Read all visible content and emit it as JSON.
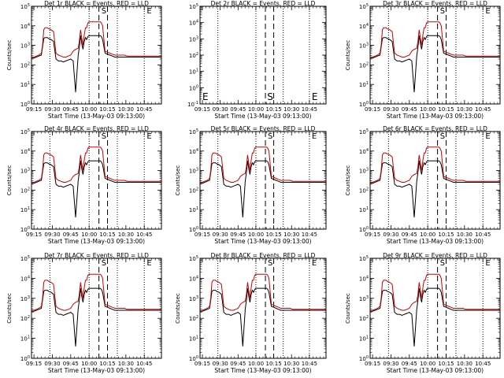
{
  "chart_data": [
    {
      "type": "line",
      "title": "Det 1r  BLACK = Events, RED = LLD",
      "xlabel": "Start Time (13-May-03 09:13:00)",
      "ylabel": "Counts/sec",
      "x_tick_labels": [
        "09:15",
        "09:30",
        "09:45",
        "10:00",
        "10:15",
        "10:30",
        "10:45"
      ],
      "y_tick_labels": [
        "10^0",
        "10^1",
        "10^2",
        "10^3",
        "10^4",
        "10^5"
      ],
      "y_scale": "log",
      "ylim": [
        1,
        100000
      ],
      "marker_labels": [
        "S",
        "E"
      ],
      "series": [
        {
          "name": "BLACK = Events",
          "color": "#000000",
          "level": "events"
        },
        {
          "name": "RED = LLD",
          "color": "#cc0000",
          "level": "lld"
        }
      ],
      "has_data": true
    },
    {
      "type": "line",
      "title": "Det 2r  BLACK = Events, RED = LLD",
      "xlabel": "Start Time (13-May-03 09:13:00)",
      "ylabel": "",
      "x_tick_labels": [
        "09:15",
        "09:30",
        "09:45",
        "10:00",
        "10:15",
        "10:30",
        "10:45"
      ],
      "y_tick_labels": [
        "10^-1",
        "10^0",
        "10^1",
        "10^2",
        "10^3",
        "10^4",
        "10^5"
      ],
      "y_scale": "log",
      "ylim": [
        0.1,
        100000
      ],
      "marker_labels": [
        "E",
        "S",
        "E"
      ],
      "series": [],
      "has_data": false
    },
    {
      "type": "line",
      "title": "Det 3r  BLACK = Events, RED = LLD",
      "xlabel": "Start Time (13-May-03 09:13:00)",
      "ylabel": "Counts/sec",
      "x_tick_labels": [
        "09:15",
        "09:30",
        "09:45",
        "10:00",
        "10:15",
        "10:30",
        "10:45"
      ],
      "y_tick_labels": [
        "10^0",
        "10^1",
        "10^2",
        "10^3",
        "10^4",
        "10^5"
      ],
      "y_scale": "log",
      "ylim": [
        1,
        100000
      ],
      "marker_labels": [
        "S",
        "E"
      ],
      "series": [
        {
          "name": "BLACK = Events",
          "color": "#000000"
        },
        {
          "name": "RED = LLD",
          "color": "#cc0000"
        }
      ],
      "has_data": true
    },
    {
      "type": "line",
      "title": "Det 4r  BLACK = Events, RED = LLD",
      "xlabel": "Start Time (13-May-03 09:13:00)",
      "ylabel": "Counts/sec",
      "x_tick_labels": [
        "09:15",
        "09:30",
        "09:45",
        "10:00",
        "10:15",
        "10:30",
        "10:45"
      ],
      "y_tick_labels": [
        "10^0",
        "10^1",
        "10^2",
        "10^3",
        "10^4",
        "10^5"
      ],
      "y_scale": "log",
      "ylim": [
        1,
        100000
      ],
      "marker_labels": [
        "S",
        "E"
      ],
      "series": [
        {
          "name": "BLACK = Events",
          "color": "#000000"
        },
        {
          "name": "RED = LLD",
          "color": "#cc0000"
        }
      ],
      "has_data": true
    },
    {
      "type": "line",
      "title": "Det 5r  BLACK = Events, RED = LLD",
      "xlabel": "Start Time (13-May-03 09:13:00)",
      "ylabel": "Counts/sec",
      "x_tick_labels": [
        "09:15",
        "09:30",
        "09:45",
        "10:00",
        "10:15",
        "10:30",
        "10:45"
      ],
      "y_tick_labels": [
        "10^0",
        "10^1",
        "10^2",
        "10^3",
        "10^4",
        "10^5"
      ],
      "y_scale": "log",
      "ylim": [
        1,
        100000
      ],
      "marker_labels": [
        "S",
        "E"
      ],
      "series": [
        {
          "name": "BLACK = Events",
          "color": "#000000"
        },
        {
          "name": "RED = LLD",
          "color": "#cc0000"
        }
      ],
      "has_data": true
    },
    {
      "type": "line",
      "title": "Det 6r  BLACK = Events, RED = LLD",
      "xlabel": "Start Time (13-May-03 09:13:00)",
      "ylabel": "Counts/sec",
      "x_tick_labels": [
        "09:15",
        "09:30",
        "09:45",
        "10:00",
        "10:15",
        "10:30",
        "10:45"
      ],
      "y_tick_labels": [
        "10^0",
        "10^1",
        "10^2",
        "10^3",
        "10^4",
        "10^5"
      ],
      "y_scale": "log",
      "ylim": [
        1,
        100000
      ],
      "marker_labels": [
        "S",
        "E"
      ],
      "series": [
        {
          "name": "BLACK = Events",
          "color": "#000000"
        },
        {
          "name": "RED = LLD",
          "color": "#cc0000"
        }
      ],
      "has_data": true
    },
    {
      "type": "line",
      "title": "Det 7r  BLACK = Events, RED = LLD",
      "xlabel": "Start Time (13-May-03 09:13:00)",
      "ylabel": "Counts/sec",
      "x_tick_labels": [
        "09:15",
        "09:30",
        "09:45",
        "10:00",
        "10:15",
        "10:30",
        "10:45"
      ],
      "y_tick_labels": [
        "10^0",
        "10^1",
        "10^2",
        "10^3",
        "10^4",
        "10^5"
      ],
      "y_scale": "log",
      "ylim": [
        1,
        100000
      ],
      "marker_labels": [
        "S",
        "E"
      ],
      "series": [
        {
          "name": "BLACK = Events",
          "color": "#000000"
        },
        {
          "name": "RED = LLD",
          "color": "#cc0000"
        }
      ],
      "has_data": true
    },
    {
      "type": "line",
      "title": "Det 8r  BLACK = Events, RED = LLD",
      "xlabel": "Start Time (13-May-03 09:13:00)",
      "ylabel": "Counts/sec",
      "x_tick_labels": [
        "09:15",
        "09:30",
        "09:45",
        "10:00",
        "10:15",
        "10:30",
        "10:45"
      ],
      "y_tick_labels": [
        "10^0",
        "10^1",
        "10^2",
        "10^3",
        "10^4",
        "10^5"
      ],
      "y_scale": "log",
      "ylim": [
        1,
        100000
      ],
      "marker_labels": [
        "S",
        "E"
      ],
      "series": [
        {
          "name": "BLACK = Events",
          "color": "#000000"
        },
        {
          "name": "RED = LLD",
          "color": "#cc0000"
        }
      ],
      "has_data": true
    },
    {
      "type": "line",
      "title": "Det 9r  BLACK = Events, RED = LLD",
      "xlabel": "Start Time (13-May-03 09:13:00)",
      "ylabel": "Counts/sec",
      "x_tick_labels": [
        "09:15",
        "09:30",
        "09:45",
        "10:00",
        "10:15",
        "10:30",
        "10:45"
      ],
      "y_tick_labels": [
        "10^0",
        "10^1",
        "10^2",
        "10^3",
        "10^4",
        "10^5"
      ],
      "y_scale": "log",
      "ylim": [
        1,
        100000
      ],
      "marker_labels": [
        "S",
        "E"
      ],
      "series": [
        {
          "name": "BLACK = Events",
          "color": "#000000"
        },
        {
          "name": "RED = LLD",
          "color": "#cc0000"
        }
      ],
      "has_data": true
    }
  ],
  "time_series": {
    "minutes_after_0915": [
      0,
      2,
      4,
      6,
      8,
      9,
      10,
      11,
      12,
      13,
      14,
      16,
      18,
      20,
      22,
      24,
      26,
      28,
      30,
      32,
      34,
      36,
      38,
      39,
      40,
      41,
      42,
      43,
      44,
      45,
      46,
      47,
      48,
      49,
      50,
      51,
      52,
      53,
      54,
      55,
      56,
      57,
      58,
      60,
      62,
      64,
      66,
      68,
      70,
      72,
      74,
      76,
      78,
      80,
      82,
      84,
      86,
      88,
      90,
      92,
      94,
      96,
      98,
      100,
      102,
      104,
      106
    ],
    "lld_log10": [
      2.4,
      2.4,
      2.45,
      2.5,
      2.6,
      3.0,
      3.8,
      3.9,
      3.9,
      3.9,
      3.85,
      3.8,
      3.7,
      2.6,
      2.5,
      2.45,
      2.4,
      2.4,
      2.45,
      2.5,
      2.7,
      2.8,
      2.85,
      3.2,
      3.8,
      3.4,
      3.0,
      3.5,
      3.9,
      3.9,
      4.15,
      4.2,
      4.2,
      4.2,
      4.2,
      4.2,
      4.2,
      4.2,
      4.2,
      4.2,
      4.2,
      4.15,
      4.0,
      2.7,
      2.65,
      2.6,
      2.55,
      2.5,
      2.5,
      2.5,
      2.5,
      2.5,
      2.45,
      2.45,
      2.45,
      2.45,
      2.45,
      2.45,
      2.45,
      2.45,
      2.45,
      2.45,
      2.45,
      2.45,
      2.45,
      2.45,
      2.45
    ],
    "events_log10": [
      2.35,
      2.35,
      2.4,
      2.45,
      2.5,
      2.9,
      3.35,
      3.4,
      3.4,
      3.4,
      3.35,
      3.3,
      3.2,
      2.3,
      2.2,
      2.2,
      2.15,
      2.2,
      2.25,
      2.3,
      2.2,
      0.6,
      2.45,
      2.9,
      3.5,
      3.1,
      2.8,
      3.2,
      3.4,
      3.3,
      3.45,
      3.5,
      3.5,
      3.5,
      3.5,
      3.5,
      3.5,
      3.5,
      3.5,
      3.5,
      3.5,
      3.45,
      3.3,
      2.6,
      2.55,
      2.5,
      2.45,
      2.4,
      2.4,
      2.4,
      2.4,
      2.4,
      2.4,
      2.4,
      2.4,
      2.4,
      2.4,
      2.4,
      2.4,
      2.4,
      2.4,
      2.4,
      2.4,
      2.4,
      2.4,
      2.4,
      2.4
    ]
  }
}
